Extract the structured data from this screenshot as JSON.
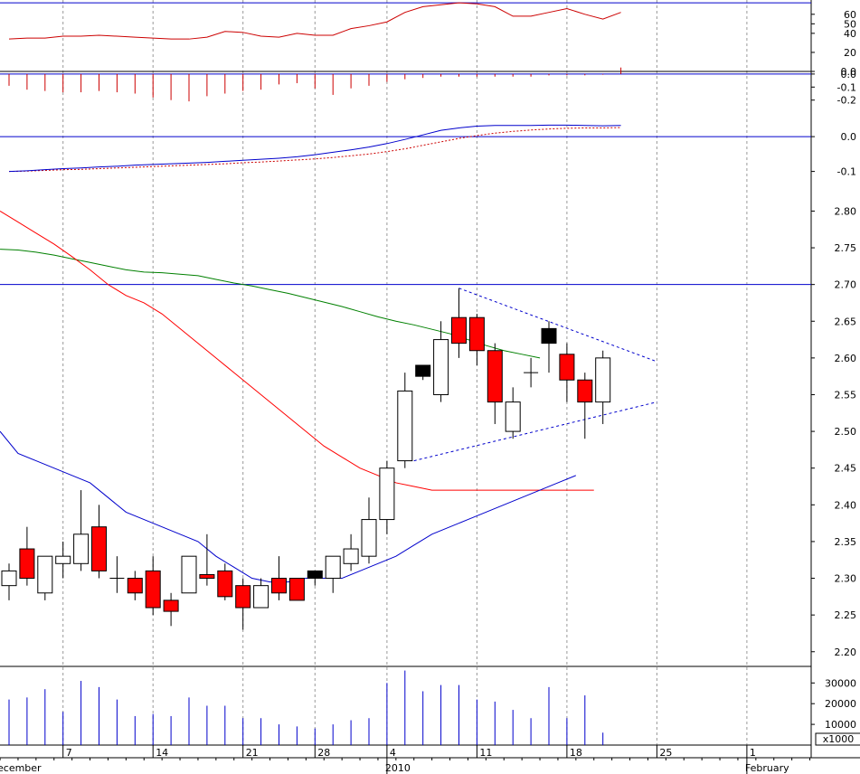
{
  "chart_data": {
    "type": "candlestick",
    "colors": {
      "up_body": "#ffffff",
      "down_body": "#ff0000",
      "black_body": "#000000",
      "ma_short": "#0000cc",
      "ma_mid": "#ff0000",
      "ma_long": "#008000",
      "stoch_line": "#cc0000",
      "macd_hist": "#cc0000",
      "macd_line": "#0000cc",
      "macd_signal": "#cc0000",
      "volume": "#0000cc",
      "hline": "#0000cc",
      "trendline": "#0000cc",
      "grid": "#999999"
    },
    "x_axis": {
      "ticks": [
        {
          "label": "7",
          "i": 3
        },
        {
          "label": "14",
          "i": 8
        },
        {
          "label": "21",
          "i": 13
        },
        {
          "label": "28",
          "i": 17
        },
        {
          "label": "4",
          "i": 21
        },
        {
          "label": "11",
          "i": 26
        },
        {
          "label": "18",
          "i": 31
        },
        {
          "label": "25",
          "i": 36
        },
        {
          "label": "1",
          "i": 41
        }
      ],
      "month_labels": [
        {
          "label": "ecember",
          "i": -0.5
        },
        {
          "label": "2010",
          "i": 21
        },
        {
          "label": "February",
          "i": 41
        }
      ]
    },
    "panels": {
      "stochastic": {
        "ylim": [
          0,
          75
        ],
        "ticks": [
          "0.0",
          "20",
          "40",
          "50",
          "60"
        ],
        "tick_values": [
          0,
          20,
          40,
          50,
          60
        ],
        "hline": 72,
        "series": [
          34,
          35,
          35,
          37,
          37,
          38,
          37,
          36,
          35,
          34,
          34,
          36,
          42,
          41,
          37,
          36,
          40,
          38,
          38,
          45,
          48,
          52,
          62,
          68,
          70,
          72,
          71,
          68,
          58,
          58,
          62,
          66,
          60,
          55,
          62
        ]
      },
      "macd_histogram": {
        "ylim": [
          -0.32,
          0.02
        ],
        "ticks": [
          "0.0",
          "-0.1",
          "-0.2"
        ],
        "tick_values": [
          0,
          -0.1,
          -0.2
        ],
        "bars": [
          -0.09,
          -0.12,
          -0.13,
          -0.14,
          -0.14,
          -0.13,
          -0.14,
          -0.15,
          -0.18,
          -0.2,
          -0.21,
          -0.17,
          -0.15,
          -0.13,
          -0.12,
          -0.08,
          -0.07,
          -0.11,
          -0.16,
          -0.11,
          -0.09,
          -0.06,
          -0.04,
          -0.03,
          -0.02,
          -0.02,
          -0.02,
          -0.02,
          -0.02,
          -0.02,
          -0.01,
          -0.01,
          -0.01,
          -0.005,
          0.05
        ]
      },
      "macd": {
        "ylim": [
          -0.14,
          0.06
        ],
        "ticks": [
          "0.0",
          "-0.1"
        ],
        "tick_values": [
          0,
          -0.1
        ],
        "hline": 0,
        "macd": [
          -0.1,
          -0.098,
          -0.095,
          -0.092,
          -0.09,
          -0.087,
          -0.085,
          -0.082,
          -0.08,
          -0.078,
          -0.076,
          -0.074,
          -0.071,
          -0.068,
          -0.065,
          -0.062,
          -0.058,
          -0.052,
          -0.045,
          -0.038,
          -0.03,
          -0.02,
          -0.008,
          0.005,
          0.018,
          0.025,
          0.03,
          0.032,
          0.032,
          0.032,
          0.033,
          0.033,
          0.032,
          0.031,
          0.032
        ],
        "signal": [
          -0.1,
          -0.099,
          -0.097,
          -0.095,
          -0.094,
          -0.092,
          -0.09,
          -0.088,
          -0.086,
          -0.084,
          -0.082,
          -0.08,
          -0.078,
          -0.075,
          -0.073,
          -0.07,
          -0.067,
          -0.064,
          -0.06,
          -0.055,
          -0.05,
          -0.043,
          -0.035,
          -0.025,
          -0.015,
          -0.005,
          0.003,
          0.01,
          0.015,
          0.019,
          0.022,
          0.024,
          0.025,
          0.025,
          0.026
        ]
      },
      "price": {
        "ylim": [
          2.18,
          2.835
        ],
        "ticks": [
          "2.20",
          "2.25",
          "2.30",
          "2.35",
          "2.40",
          "2.45",
          "2.50",
          "2.55",
          "2.60",
          "2.65",
          "2.70",
          "2.75",
          "2.80"
        ],
        "tick_values": [
          2.2,
          2.25,
          2.3,
          2.35,
          2.4,
          2.45,
          2.5,
          2.55,
          2.6,
          2.65,
          2.7,
          2.75,
          2.8
        ],
        "hline": 2.7,
        "candles": [
          {
            "o": 2.29,
            "h": 2.32,
            "l": 2.27,
            "c": 2.31,
            "k": "up"
          },
          {
            "o": 2.34,
            "h": 2.37,
            "l": 2.29,
            "c": 2.3,
            "k": "down"
          },
          {
            "o": 2.28,
            "h": 2.33,
            "l": 2.27,
            "c": 2.33,
            "k": "up"
          },
          {
            "o": 2.32,
            "h": 2.35,
            "l": 2.3,
            "c": 2.33,
            "k": "up"
          },
          {
            "o": 2.32,
            "h": 2.42,
            "l": 2.31,
            "c": 2.36,
            "k": "up"
          },
          {
            "o": 2.37,
            "h": 2.4,
            "l": 2.3,
            "c": 2.31,
            "k": "down"
          },
          {
            "o": 2.3,
            "h": 2.33,
            "l": 2.28,
            "c": 2.3,
            "k": "doji"
          },
          {
            "o": 2.3,
            "h": 2.31,
            "l": 2.27,
            "c": 2.28,
            "k": "down"
          },
          {
            "o": 2.31,
            "h": 2.33,
            "l": 2.25,
            "c": 2.26,
            "k": "down"
          },
          {
            "o": 2.27,
            "h": 2.28,
            "l": 2.235,
            "c": 2.255,
            "k": "down"
          },
          {
            "o": 2.28,
            "h": 2.33,
            "l": 2.28,
            "c": 2.33,
            "k": "up"
          },
          {
            "o": 2.3,
            "h": 2.36,
            "l": 2.29,
            "c": 2.305,
            "k": "down"
          },
          {
            "o": 2.31,
            "h": 2.32,
            "l": 2.27,
            "c": 2.275,
            "k": "down"
          },
          {
            "o": 2.29,
            "h": 2.3,
            "l": 2.23,
            "c": 2.26,
            "k": "down"
          },
          {
            "o": 2.26,
            "h": 2.3,
            "l": 2.26,
            "c": 2.29,
            "k": "up"
          },
          {
            "o": 2.3,
            "h": 2.33,
            "l": 2.27,
            "c": 2.28,
            "k": "down"
          },
          {
            "o": 2.3,
            "h": 2.3,
            "l": 2.27,
            "c": 2.27,
            "k": "down"
          },
          {
            "o": 2.3,
            "h": 2.31,
            "l": 2.29,
            "c": 2.31,
            "k": "black"
          },
          {
            "o": 2.3,
            "h": 2.33,
            "l": 2.28,
            "c": 2.33,
            "k": "up"
          },
          {
            "o": 2.32,
            "h": 2.36,
            "l": 2.31,
            "c": 2.34,
            "k": "up"
          },
          {
            "o": 2.33,
            "h": 2.41,
            "l": 2.32,
            "c": 2.38,
            "k": "up"
          },
          {
            "o": 2.38,
            "h": 2.46,
            "l": 2.36,
            "c": 2.45,
            "k": "up"
          },
          {
            "o": 2.46,
            "h": 2.58,
            "l": 2.45,
            "c": 2.555,
            "k": "up"
          },
          {
            "o": 2.575,
            "h": 2.59,
            "l": 2.57,
            "c": 2.59,
            "k": "black"
          },
          {
            "o": 2.55,
            "h": 2.65,
            "l": 2.54,
            "c": 2.625,
            "k": "up"
          },
          {
            "o": 2.655,
            "h": 2.695,
            "l": 2.6,
            "c": 2.62,
            "k": "down"
          },
          {
            "o": 2.655,
            "h": 2.66,
            "l": 2.59,
            "c": 2.61,
            "k": "down"
          },
          {
            "o": 2.61,
            "h": 2.62,
            "l": 2.51,
            "c": 2.54,
            "k": "down"
          },
          {
            "o": 2.5,
            "h": 2.56,
            "l": 2.49,
            "c": 2.54,
            "k": "up"
          },
          {
            "o": 2.58,
            "h": 2.6,
            "l": 2.56,
            "c": 2.58,
            "k": "doji"
          },
          {
            "o": 2.62,
            "h": 2.65,
            "l": 2.58,
            "c": 2.64,
            "k": "black"
          },
          {
            "o": 2.605,
            "h": 2.62,
            "l": 2.54,
            "c": 2.57,
            "k": "down"
          },
          {
            "o": 2.57,
            "h": 2.58,
            "l": 2.49,
            "c": 2.54,
            "k": "down"
          },
          {
            "o": 2.54,
            "h": 2.61,
            "l": 2.51,
            "c": 2.6,
            "k": "up"
          }
        ],
        "ma_short": [
          2.5,
          2.47,
          2.46,
          2.45,
          2.44,
          2.43,
          2.41,
          2.39,
          2.38,
          2.37,
          2.36,
          2.35,
          2.33,
          2.315,
          2.3,
          2.295,
          2.295,
          2.3,
          2.3,
          2.3,
          2.31,
          2.32,
          2.33,
          2.345,
          2.36,
          2.37,
          2.38,
          2.39,
          2.4,
          2.41,
          2.42,
          2.43,
          2.44
        ],
        "ma_short_start": -0.5,
        "ma_mid": [
          2.8,
          2.785,
          2.77,
          2.755,
          2.738,
          2.72,
          2.7,
          2.685,
          2.675,
          2.66,
          2.64,
          2.62,
          2.6,
          2.58,
          2.56,
          2.54,
          2.52,
          2.5,
          2.48,
          2.465,
          2.45,
          2.44,
          2.43,
          2.425,
          2.42,
          2.42,
          2.42,
          2.42,
          2.42,
          2.42,
          2.42,
          2.42,
          2.42,
          2.42
        ],
        "ma_mid_start": -0.5,
        "ma_long": [
          2.748,
          2.747,
          2.744,
          2.74,
          2.735,
          2.73,
          2.725,
          2.72,
          2.717,
          2.716,
          2.714,
          2.712,
          2.707,
          2.702,
          2.698,
          2.693,
          2.688,
          2.682,
          2.676,
          2.67,
          2.663,
          2.656,
          2.65,
          2.645,
          2.639,
          2.633,
          2.625,
          2.617,
          2.61,
          2.605,
          2.6
        ],
        "ma_long_start": -0.5,
        "trendlines": [
          {
            "x0": 25,
            "y0": 2.695,
            "x1": 36,
            "y1": 2.595
          },
          {
            "x0": 22.5,
            "y0": 2.46,
            "x1": 36,
            "y1": 2.54
          }
        ]
      },
      "volume": {
        "ylim": [
          0,
          38000
        ],
        "ticks": [
          "10000",
          "20000",
          "30000"
        ],
        "tick_values": [
          10000,
          20000,
          30000
        ],
        "multiplier": "x1000",
        "bars": [
          22000,
          23000,
          27000,
          16000,
          31000,
          28000,
          22000,
          14000,
          15000,
          14000,
          23000,
          19000,
          19000,
          13000,
          13000,
          10000,
          9000,
          8000,
          10000,
          12000,
          13000,
          30000,
          36000,
          26000,
          29000,
          29000,
          22000,
          21000,
          17000,
          13000,
          28000,
          13000,
          24000,
          6000
        ]
      }
    }
  }
}
